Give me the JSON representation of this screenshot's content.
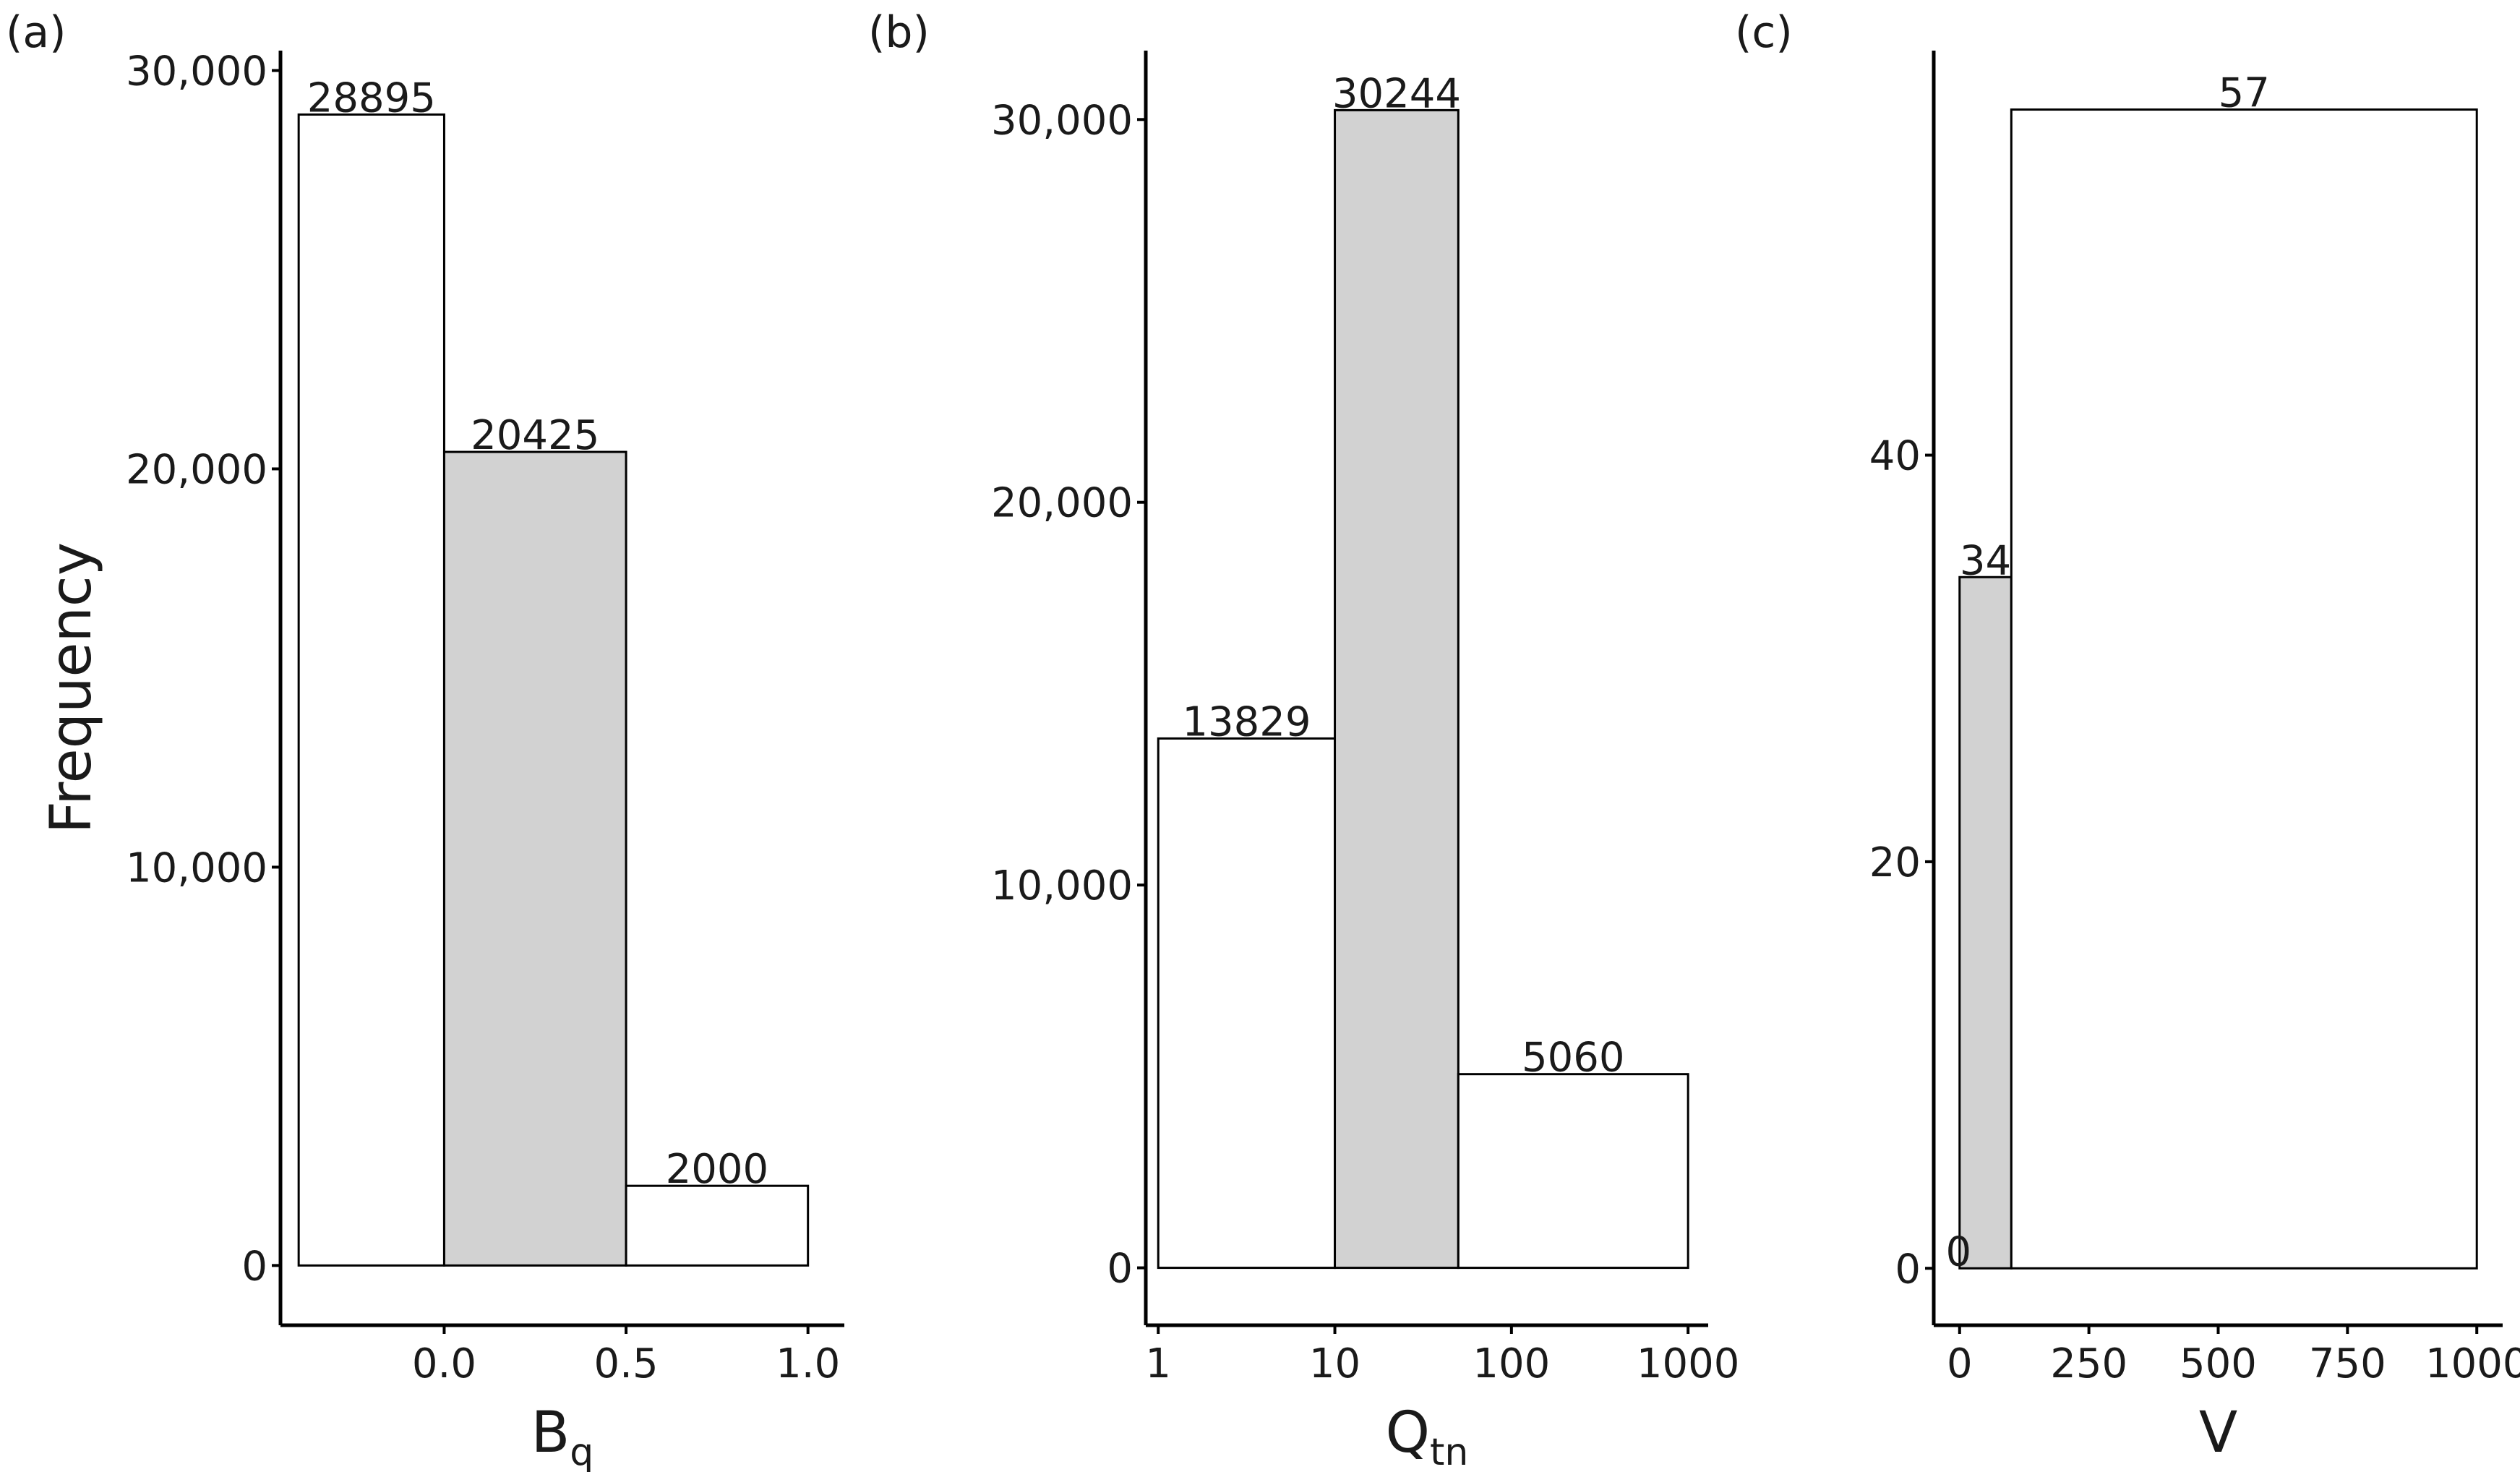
{
  "colors": {
    "light": "#ffffff",
    "dark": "#d2d2d2",
    "stroke": "#000000"
  },
  "chart_data": [
    {
      "panel": "(a)",
      "type": "bar",
      "ylabel": "Frequency",
      "xlabel": {
        "main": "B",
        "sub": "q"
      },
      "x_ticks": [
        "0.0",
        "0.5",
        "1.0"
      ],
      "x_tick_values": [
        0.0,
        0.5,
        1.0
      ],
      "xlim": [
        -0.45,
        1.1
      ],
      "y_ticks": [
        "0",
        "10,000",
        "20,000",
        "30,000"
      ],
      "y_tick_values": [
        0,
        10000,
        20000,
        30000
      ],
      "ylim": [
        -1500,
        30500
      ],
      "bins": [
        {
          "x0": -0.4,
          "x1": 0.0,
          "value": 28895,
          "label": "28895",
          "fill": "light"
        },
        {
          "x0": 0.0,
          "x1": 0.5,
          "value": 20425,
          "label": "20425",
          "fill": "dark"
        },
        {
          "x0": 0.5,
          "x1": 1.0,
          "value": 2000,
          "label": "2000",
          "fill": "light"
        }
      ]
    },
    {
      "panel": "(b)",
      "type": "bar",
      "xscale": "log",
      "xlabel": {
        "main": "Q",
        "sub": "tn"
      },
      "x_ticks": [
        "1",
        "10",
        "100",
        "1000"
      ],
      "x_tick_values": [
        1,
        10,
        100,
        1000
      ],
      "xlim": [
        0.85,
        1300
      ],
      "y_ticks": [
        "0",
        "10,000",
        "20,000",
        "30,000"
      ],
      "y_tick_values": [
        0,
        10000,
        20000,
        30000
      ],
      "ylim": [
        -1500,
        31800
      ],
      "bins": [
        {
          "x0": 1,
          "x1": 10,
          "value": 13829,
          "label": "13829",
          "fill": "light"
        },
        {
          "x0": 10,
          "x1": 50,
          "value": 30244,
          "label": "30244",
          "fill": "dark"
        },
        {
          "x0": 50,
          "x1": 1000,
          "value": 5060,
          "label": "5060",
          "fill": "light"
        }
      ]
    },
    {
      "panel": "(c)",
      "type": "bar",
      "xlabel": {
        "main": "V",
        "sub": ""
      },
      "x_ticks": [
        "0",
        "250",
        "500",
        "750",
        "1000"
      ],
      "x_tick_values": [
        0,
        250,
        500,
        750,
        1000
      ],
      "xlim": [
        -50,
        1050
      ],
      "y_ticks": [
        "0",
        "20",
        "40"
      ],
      "y_tick_values": [
        0,
        20,
        40
      ],
      "ylim": [
        -2.8,
        59.9
      ],
      "bins": [
        {
          "x0": -4,
          "x1": 0,
          "value": 0,
          "label": "0",
          "fill": "light"
        },
        {
          "x0": 0,
          "x1": 100,
          "value": 34,
          "label": "34",
          "fill": "dark"
        },
        {
          "x0": 100,
          "x1": 1000,
          "value": 57,
          "label": "57",
          "fill": "light"
        }
      ]
    }
  ]
}
